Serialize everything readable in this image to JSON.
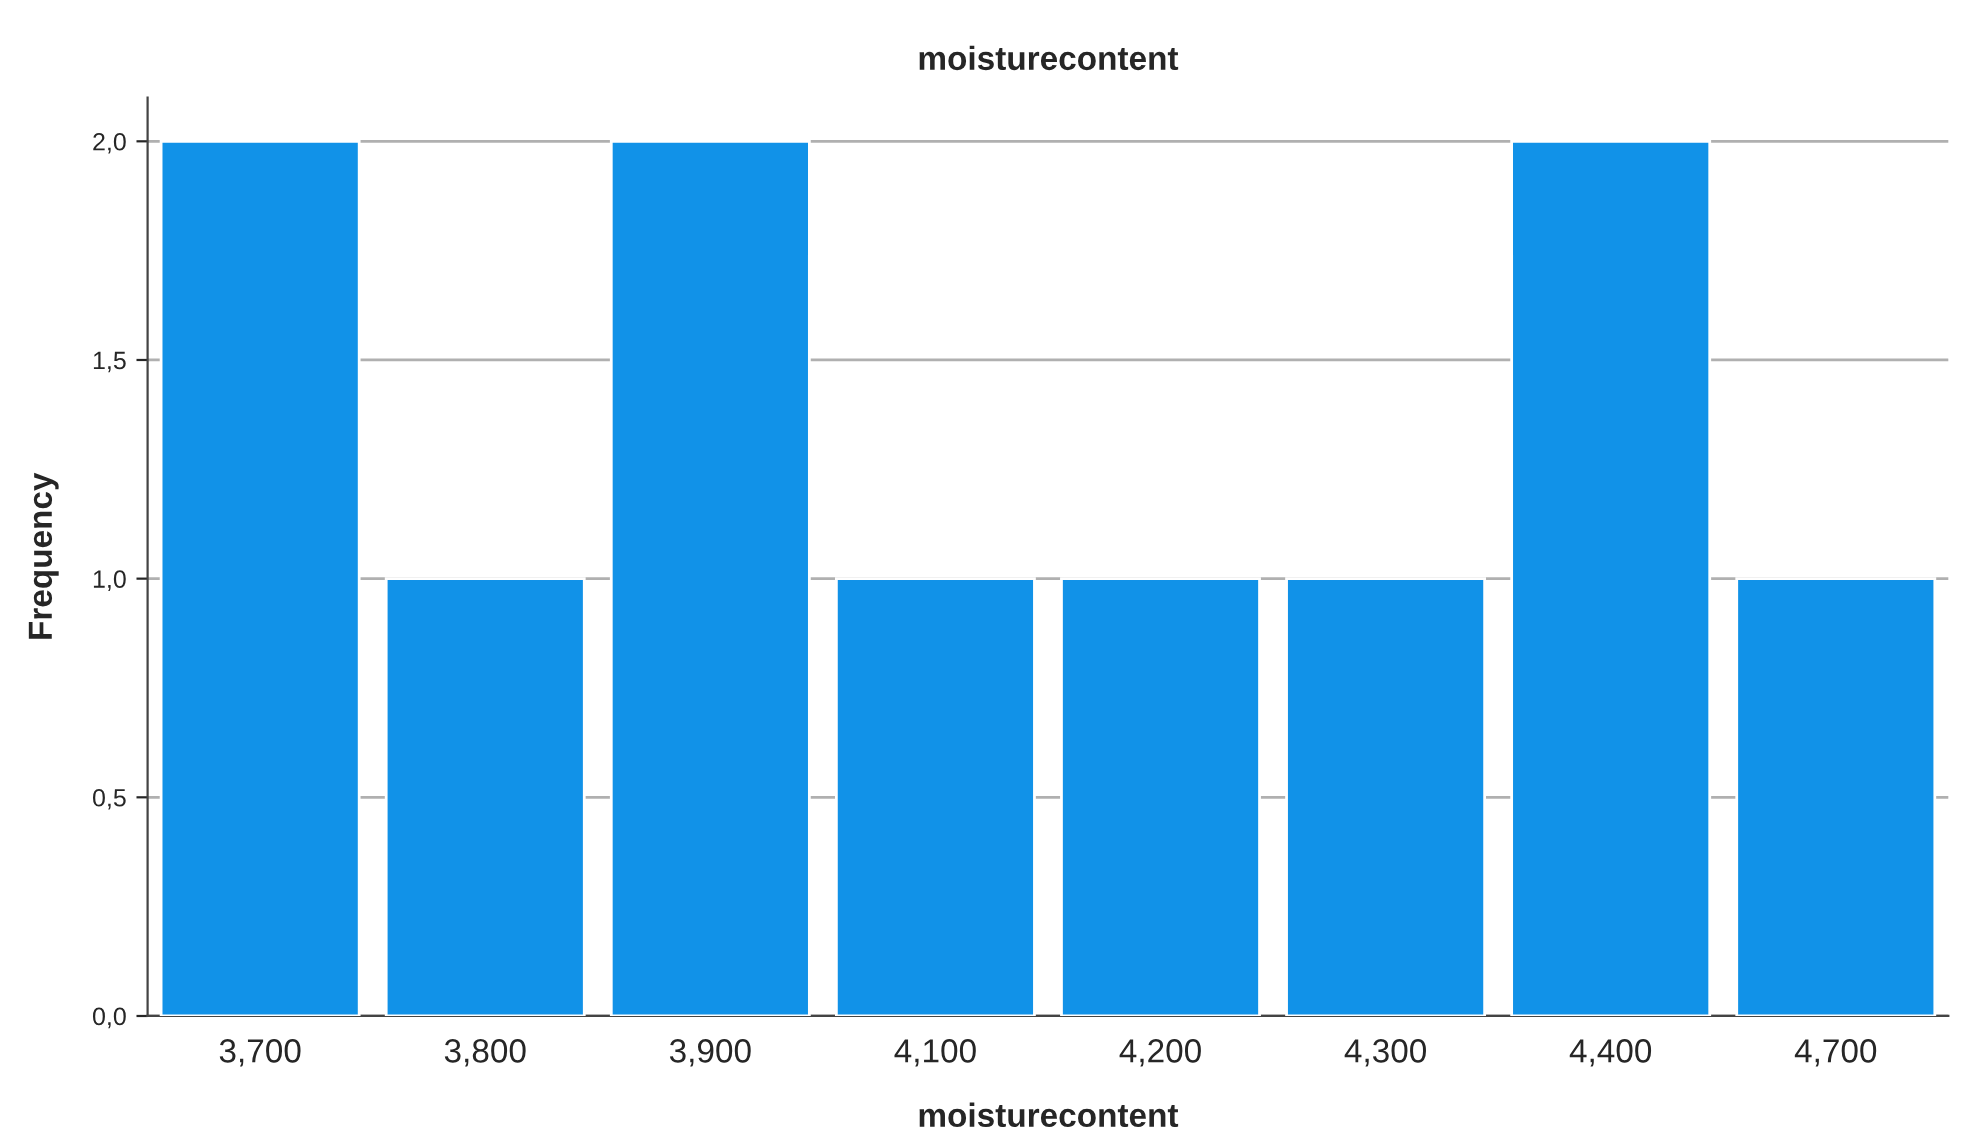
{
  "chart_data": {
    "type": "bar",
    "title": "moisturecontent",
    "xlabel": "moisturecontent",
    "ylabel": "Frequency",
    "categories": [
      "3,700",
      "3,800",
      "3,900",
      "4,100",
      "4,200",
      "4,300",
      "4,400",
      "4,700"
    ],
    "values": [
      2,
      1,
      2,
      1,
      1,
      1,
      2,
      1
    ],
    "color": "#1192e8",
    "ylim": [
      0,
      2.1
    ],
    "yticks": [
      {
        "value": 0,
        "label": "0,0"
      },
      {
        "value": 0.5,
        "label": "0,5"
      },
      {
        "value": 1,
        "label": "1,0"
      },
      {
        "value": 1.5,
        "label": "1,5"
      },
      {
        "value": 2,
        "label": "2,0"
      }
    ],
    "grid": "y"
  }
}
